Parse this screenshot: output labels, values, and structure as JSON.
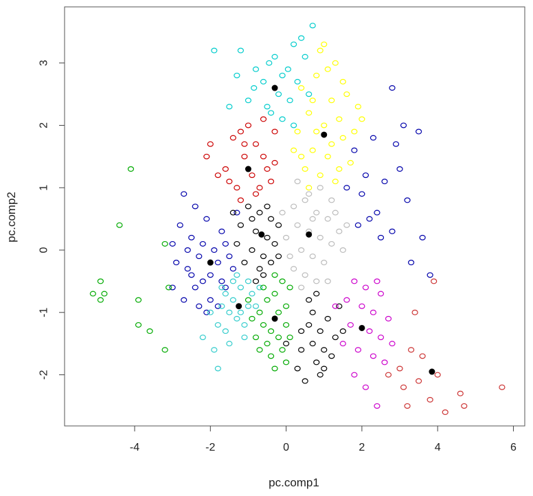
{
  "chart_data": {
    "type": "scatter",
    "title": "",
    "xlabel": "pc.comp1",
    "ylabel": "pc.comp2",
    "xlim": [
      -5.85,
      6.3
    ],
    "ylim": [
      -2.82,
      3.9
    ],
    "xticks": [
      -4,
      -2,
      0,
      2,
      4,
      6
    ],
    "xtick_labels": [
      "-4",
      "-2",
      "0",
      "2",
      "4",
      "6"
    ],
    "yticks": [
      -2,
      -1,
      0,
      1,
      2,
      3
    ],
    "ytick_labels": [
      "-2",
      "-1",
      "0",
      "1",
      "2",
      "3"
    ],
    "grid": false,
    "legend": "none",
    "marker": "open circle",
    "centroid_marker": "filled circle",
    "centroid_color": "#000000",
    "series": [
      {
        "color": "#00cccc",
        "centroid": [
          -0.3,
          2.6
        ],
        "points": [
          [
            -1.2,
            3.2
          ],
          [
            -0.45,
            3.0
          ],
          [
            -0.3,
            3.1
          ],
          [
            0.2,
            3.3
          ],
          [
            -0.8,
            2.9
          ],
          [
            -0.6,
            2.7
          ],
          [
            -0.2,
            2.5
          ],
          [
            0.1,
            2.4
          ],
          [
            -1.0,
            2.4
          ],
          [
            -0.5,
            2.3
          ],
          [
            -0.1,
            2.1
          ],
          [
            0.2,
            2.0
          ],
          [
            0.5,
            3.1
          ],
          [
            0.7,
            3.6
          ],
          [
            -1.3,
            2.8
          ],
          [
            -0.4,
            2.2
          ],
          [
            -0.1,
            2.8
          ],
          [
            0.3,
            2.7
          ],
          [
            0.6,
            2.5
          ],
          [
            -1.5,
            2.3
          ],
          [
            -0.85,
            2.6
          ],
          [
            0.05,
            2.9
          ],
          [
            0.4,
            3.4
          ],
          [
            -1.9,
            3.2
          ]
        ]
      },
      {
        "color": "#ffff00",
        "centroid": [
          1.0,
          1.85
        ],
        "points": [
          [
            0.4,
            2.6
          ],
          [
            0.8,
            2.8
          ],
          [
            1.2,
            2.4
          ],
          [
            0.6,
            2.2
          ],
          [
            1.0,
            2.0
          ],
          [
            1.4,
            2.1
          ],
          [
            0.3,
            1.9
          ],
          [
            0.7,
            1.6
          ],
          [
            1.1,
            1.5
          ],
          [
            1.5,
            1.8
          ],
          [
            0.5,
            1.3
          ],
          [
            0.9,
            1.2
          ],
          [
            1.3,
            1.1
          ],
          [
            1.7,
            1.4
          ],
          [
            2.0,
            2.1
          ],
          [
            0.2,
            1.6
          ],
          [
            1.0,
            3.3
          ],
          [
            1.3,
            3.0
          ],
          [
            0.6,
            1.0
          ],
          [
            1.6,
            2.5
          ],
          [
            0.8,
            1.9
          ],
          [
            1.2,
            1.7
          ],
          [
            1.8,
            1.9
          ],
          [
            0.4,
            1.5
          ],
          [
            1.1,
            2.9
          ],
          [
            0.9,
            3.2
          ],
          [
            1.4,
            1.3
          ],
          [
            1.9,
            2.3
          ],
          [
            0.7,
            2.4
          ],
          [
            1.5,
            2.7
          ]
        ]
      },
      {
        "color": "#cc0000",
        "centroid": [
          -1.0,
          1.3
        ],
        "points": [
          [
            -1.2,
            1.9
          ],
          [
            -0.8,
            1.7
          ],
          [
            -0.6,
            1.5
          ],
          [
            -1.1,
            1.5
          ],
          [
            -0.9,
            1.2
          ],
          [
            -1.3,
            1.0
          ],
          [
            -0.7,
            1.0
          ],
          [
            -0.5,
            1.3
          ],
          [
            -1.4,
            1.8
          ],
          [
            -1.0,
            2.0
          ],
          [
            -0.4,
            1.1
          ],
          [
            -1.6,
            1.3
          ],
          [
            -2.0,
            1.7
          ],
          [
            -2.1,
            1.5
          ],
          [
            -0.3,
            1.9
          ],
          [
            -1.2,
            0.8
          ],
          [
            -0.8,
            0.9
          ],
          [
            -1.5,
            1.1
          ],
          [
            -0.6,
            2.1
          ],
          [
            -1.1,
            1.7
          ],
          [
            -0.3,
            1.4
          ],
          [
            -1.8,
            1.2
          ]
        ]
      },
      {
        "color": "#0000aa",
        "centroid": [
          -2.0,
          -0.2
        ],
        "points": [
          [
            -2.5,
            0.2
          ],
          [
            -2.3,
            -0.1
          ],
          [
            -2.0,
            -0.4
          ],
          [
            -1.8,
            -0.2
          ],
          [
            -2.2,
            -0.5
          ],
          [
            -1.6,
            0.1
          ],
          [
            -2.6,
            -0.3
          ],
          [
            -2.4,
            -0.6
          ],
          [
            -1.7,
            -0.5
          ],
          [
            -1.9,
            0.0
          ],
          [
            -2.8,
            0.4
          ],
          [
            -2.1,
            0.5
          ],
          [
            -1.5,
            -0.1
          ],
          [
            -2.7,
            -0.8
          ],
          [
            -2.3,
            -0.9
          ],
          [
            -1.4,
            -0.3
          ],
          [
            -2.9,
            -0.2
          ],
          [
            -2.0,
            -0.8
          ],
          [
            -1.6,
            -0.6
          ],
          [
            -2.5,
            -0.4
          ],
          [
            -2.2,
            0.1
          ],
          [
            -1.8,
            -0.9
          ],
          [
            -2.6,
            0.0
          ],
          [
            -1.7,
            0.3
          ],
          [
            -3.0,
            -0.6
          ],
          [
            -2.4,
            0.7
          ],
          [
            -1.3,
            0.6
          ],
          [
            -2.7,
            0.9
          ],
          [
            -3.0,
            0.1
          ],
          [
            -2.1,
            -1.0
          ],
          [
            2.8,
            2.6
          ],
          [
            2.9,
            1.7
          ],
          [
            3.5,
            1.9
          ],
          [
            2.3,
            1.8
          ],
          [
            3.0,
            1.3
          ],
          [
            2.6,
            1.1
          ],
          [
            2.0,
            0.9
          ],
          [
            3.2,
            0.8
          ],
          [
            2.2,
            0.5
          ],
          [
            2.8,
            0.3
          ],
          [
            3.3,
            -0.2
          ],
          [
            3.6,
            0.2
          ],
          [
            2.4,
            0.6
          ],
          [
            1.8,
            1.6
          ],
          [
            2.1,
            1.2
          ],
          [
            1.6,
            1.0
          ],
          [
            3.1,
            2.0
          ],
          [
            2.5,
            0.2
          ],
          [
            3.8,
            -0.4
          ],
          [
            1.9,
            0.4
          ]
        ]
      },
      {
        "color": "#000000",
        "centroid": [
          -0.65,
          0.25
        ],
        "points": [
          [
            -1.0,
            0.7
          ],
          [
            -0.7,
            0.6
          ],
          [
            -0.4,
            0.5
          ],
          [
            -1.2,
            0.4
          ],
          [
            -0.8,
            0.3
          ],
          [
            -0.5,
            0.2
          ],
          [
            -0.9,
            0.0
          ],
          [
            -0.6,
            -0.1
          ],
          [
            -0.3,
            0.1
          ],
          [
            -1.1,
            -0.2
          ],
          [
            -0.7,
            -0.3
          ],
          [
            -0.4,
            -0.2
          ],
          [
            -0.2,
            0.4
          ],
          [
            -1.3,
            0.1
          ],
          [
            -0.9,
            0.5
          ],
          [
            -0.5,
            0.7
          ],
          [
            -0.6,
            -0.4
          ],
          [
            -0.2,
            -0.1
          ],
          [
            -1.4,
            0.6
          ],
          [
            -0.8,
            -0.5
          ],
          [
            0.0,
            -1.5
          ],
          [
            0.4,
            -1.6
          ],
          [
            0.6,
            -1.2
          ],
          [
            0.9,
            -1.3
          ],
          [
            0.7,
            -1.0
          ],
          [
            1.0,
            -1.6
          ],
          [
            0.3,
            -1.9
          ],
          [
            0.5,
            -2.1
          ],
          [
            0.8,
            -1.8
          ],
          [
            1.1,
            -1.1
          ],
          [
            0.6,
            -0.8
          ],
          [
            1.3,
            -1.4
          ],
          [
            1.4,
            -0.9
          ],
          [
            0.9,
            -2.0
          ],
          [
            0.4,
            -1.3
          ],
          [
            1.2,
            -1.7
          ],
          [
            0.7,
            -1.5
          ],
          [
            1.5,
            -1.3
          ],
          [
            0.8,
            -0.7
          ],
          [
            1.0,
            -1.9
          ]
        ]
      },
      {
        "color": "#bbbbbb",
        "centroid": [
          0.6,
          0.25
        ],
        "points": [
          [
            0.2,
            0.7
          ],
          [
            0.5,
            0.8
          ],
          [
            0.8,
            0.6
          ],
          [
            1.1,
            0.5
          ],
          [
            0.3,
            0.4
          ],
          [
            0.6,
            0.3
          ],
          [
            0.9,
            0.2
          ],
          [
            1.2,
            0.1
          ],
          [
            0.4,
            0.0
          ],
          [
            0.7,
            -0.1
          ],
          [
            1.0,
            -0.2
          ],
          [
            0.2,
            -0.3
          ],
          [
            0.5,
            -0.4
          ],
          [
            0.8,
            -0.5
          ],
          [
            1.3,
            0.6
          ],
          [
            0.0,
            0.2
          ],
          [
            1.4,
            0.3
          ],
          [
            0.1,
            -0.1
          ],
          [
            1.1,
            -0.5
          ],
          [
            0.6,
            0.9
          ],
          [
            0.3,
            1.1
          ],
          [
            0.9,
            1.0
          ],
          [
            1.5,
            0.0
          ],
          [
            -0.1,
            0.6
          ],
          [
            0.4,
            -0.6
          ],
          [
            1.2,
            0.8
          ],
          [
            0.7,
            0.5
          ],
          [
            1.6,
            0.4
          ]
        ]
      },
      {
        "color": "#33cccc",
        "centroid": [
          -1.25,
          -0.9
        ],
        "points": [
          [
            -1.6,
            -0.7
          ],
          [
            -1.4,
            -0.8
          ],
          [
            -1.2,
            -0.6
          ],
          [
            -1.0,
            -0.9
          ],
          [
            -1.5,
            -1.0
          ],
          [
            -1.3,
            -1.1
          ],
          [
            -1.1,
            -1.2
          ],
          [
            -0.9,
            -0.7
          ],
          [
            -1.7,
            -0.9
          ],
          [
            -1.4,
            -0.5
          ],
          [
            -1.2,
            -1.0
          ],
          [
            -1.0,
            -0.5
          ],
          [
            -1.8,
            -1.2
          ],
          [
            -1.6,
            -1.3
          ],
          [
            -1.3,
            -0.4
          ],
          [
            -0.8,
            -0.9
          ],
          [
            -2.0,
            -1.0
          ],
          [
            -1.5,
            -1.5
          ],
          [
            -1.9,
            -1.6
          ],
          [
            -0.7,
            -0.6
          ],
          [
            -1.1,
            -1.4
          ],
          [
            -1.7,
            -0.6
          ],
          [
            -2.2,
            -1.4
          ],
          [
            -1.8,
            -1.9
          ]
        ]
      },
      {
        "color": "#00aa00",
        "centroid": [
          -0.3,
          -1.1
        ],
        "points": [
          [
            -0.7,
            -1.0
          ],
          [
            -0.5,
            -0.8
          ],
          [
            -0.3,
            -0.7
          ],
          [
            -0.1,
            -0.5
          ],
          [
            -0.6,
            -1.2
          ],
          [
            -0.4,
            -1.3
          ],
          [
            -0.2,
            -1.0
          ],
          [
            0.0,
            -0.9
          ],
          [
            -0.8,
            -1.4
          ],
          [
            -0.5,
            -1.5
          ],
          [
            -0.2,
            -1.4
          ],
          [
            0.0,
            -1.2
          ],
          [
            -0.9,
            -1.1
          ],
          [
            -0.3,
            -0.4
          ],
          [
            0.1,
            -0.6
          ],
          [
            -0.6,
            -0.6
          ],
          [
            -0.1,
            -1.6
          ],
          [
            -0.4,
            -1.7
          ],
          [
            -0.7,
            -1.6
          ],
          [
            0.1,
            -1.4
          ],
          [
            0.0,
            -1.8
          ],
          [
            -1.0,
            -0.8
          ],
          [
            -0.3,
            -1.9
          ],
          [
            -4.4,
            0.4
          ],
          [
            -4.1,
            1.3
          ],
          [
            -4.8,
            -0.7
          ],
          [
            -5.1,
            -0.7
          ],
          [
            -4.9,
            -0.5
          ],
          [
            -3.9,
            -0.8
          ],
          [
            -3.6,
            -1.3
          ],
          [
            -3.2,
            -1.6
          ],
          [
            -3.2,
            0.1
          ],
          [
            -3.1,
            -0.6
          ],
          [
            -3.9,
            -1.2
          ],
          [
            -4.9,
            -0.8
          ]
        ]
      },
      {
        "color": "#cc00cc",
        "centroid": [
          2.0,
          -1.25
        ],
        "points": [
          [
            1.8,
            -0.5
          ],
          [
            2.1,
            -0.6
          ],
          [
            2.4,
            -0.5
          ],
          [
            1.6,
            -0.8
          ],
          [
            2.0,
            -0.9
          ],
          [
            2.3,
            -1.0
          ],
          [
            1.7,
            -1.2
          ],
          [
            2.2,
            -1.3
          ],
          [
            2.5,
            -1.4
          ],
          [
            1.9,
            -1.6
          ],
          [
            2.3,
            -1.7
          ],
          [
            2.6,
            -1.8
          ],
          [
            1.5,
            -1.5
          ],
          [
            2.7,
            -1.1
          ],
          [
            2.1,
            -2.2
          ],
          [
            2.4,
            -2.5
          ],
          [
            1.8,
            -2.0
          ],
          [
            2.8,
            -1.5
          ],
          [
            2.5,
            -0.7
          ],
          [
            1.3,
            -0.9
          ]
        ]
      },
      {
        "color": "#cc3333",
        "centroid": [
          3.85,
          -1.95
        ],
        "points": [
          [
            3.0,
            -1.9
          ],
          [
            3.3,
            -1.6
          ],
          [
            3.6,
            -1.7
          ],
          [
            3.1,
            -2.2
          ],
          [
            3.8,
            -2.4
          ],
          [
            4.2,
            -2.6
          ],
          [
            4.6,
            -2.3
          ],
          [
            4.7,
            -2.5
          ],
          [
            5.7,
            -2.2
          ],
          [
            3.5,
            -2.1
          ],
          [
            2.7,
            -2.0
          ],
          [
            3.4,
            -1.0
          ],
          [
            3.9,
            -0.5
          ],
          [
            4.0,
            -2.0
          ],
          [
            3.2,
            -2.5
          ]
        ]
      }
    ]
  }
}
